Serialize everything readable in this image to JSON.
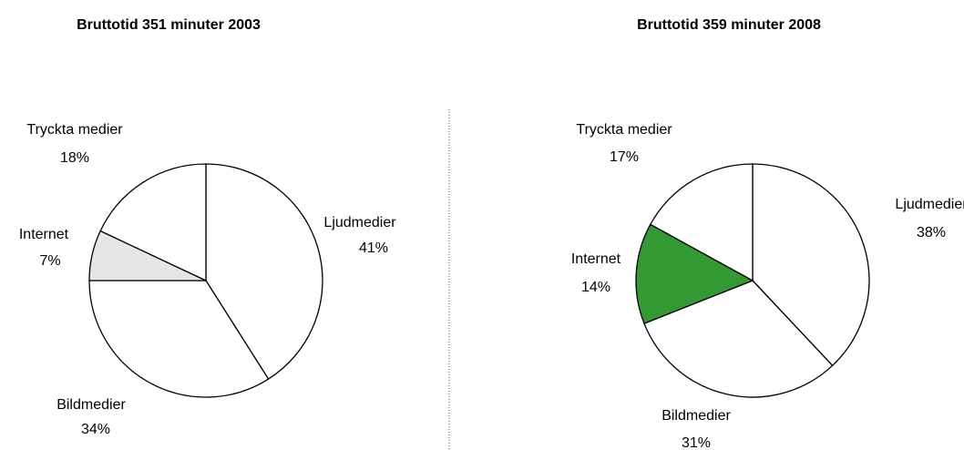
{
  "chart_data": [
    {
      "type": "pie",
      "title": "Bruttotid 351 minuter 2003",
      "categories": [
        "Ljudmedier",
        "Bildmedier",
        "Internet",
        "Tryckta medier"
      ],
      "values": [
        41,
        34,
        7,
        18
      ],
      "value_labels": [
        "41%",
        "34%",
        "7%",
        "18%"
      ],
      "colors": [
        "#ffffff",
        "#ffffff",
        "#e6e6e6",
        "#ffffff"
      ]
    },
    {
      "type": "pie",
      "title": "Bruttotid 359 minuter 2008",
      "categories": [
        "Ljudmedier",
        "Bildmedier",
        "Internet",
        "Tryckta medier"
      ],
      "values": [
        38,
        31,
        14,
        17
      ],
      "value_labels": [
        "38%",
        "31%",
        "14%",
        "17%"
      ],
      "colors": [
        "#ffffff",
        "#ffffff",
        "#339933",
        "#ffffff"
      ]
    }
  ]
}
